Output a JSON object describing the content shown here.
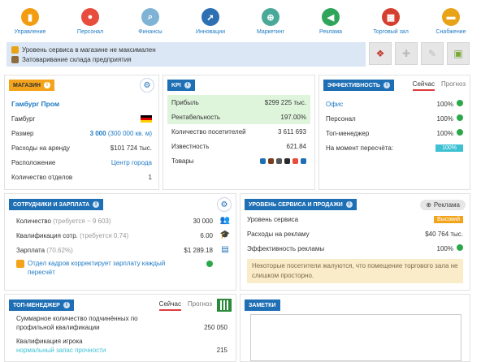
{
  "nav": [
    {
      "label": "Управление",
      "icon": "management-icon",
      "color": "#f39c12",
      "glyph": "▮"
    },
    {
      "label": "Персонал",
      "icon": "staff-icon",
      "color": "#e74c3c",
      "glyph": "●"
    },
    {
      "label": "Финансы",
      "icon": "finance-icon",
      "color": "#7fb3d5",
      "glyph": "⌕"
    },
    {
      "label": "Инновации",
      "icon": "innovation-icon",
      "color": "#2c6fb3",
      "glyph": "➚"
    },
    {
      "label": "Маркетинг",
      "icon": "marketing-icon",
      "color": "#48a999",
      "glyph": "⊕"
    },
    {
      "label": "Реклама",
      "icon": "advertising-icon",
      "color": "#2ea55a",
      "glyph": "◀"
    },
    {
      "label": "Торговый зал",
      "icon": "sales-floor-icon",
      "color": "#d43f2f",
      "glyph": "▦"
    },
    {
      "label": "Снабжение",
      "icon": "supply-icon",
      "color": "#e8a317",
      "glyph": "▬"
    }
  ],
  "notices": [
    {
      "text": "Уровень сервиса в магазине не максимален",
      "color": "#e8a317"
    },
    {
      "text": "Затоваривание склада предприятия",
      "color": "#8e6b3a"
    }
  ],
  "actions": [
    "action-1-icon",
    "action-2-icon",
    "action-3-icon",
    "action-4-icon"
  ],
  "shop": {
    "title": "МАГАЗИН",
    "name": "Гамбург Пром",
    "city": "Гамбург",
    "rows": {
      "size_label": "Размер",
      "size_value": "3 000",
      "size_extra": "(300 000 кв. м)",
      "rent_label": "Расходы на аренду",
      "rent_value": "$101 724 тыс.",
      "location_label": "Расположение",
      "location_value": "Центр города",
      "depts_label": "Количество отделов",
      "depts_value": "1"
    }
  },
  "kpi": {
    "title": "KPI",
    "rows": [
      {
        "label": "Прибыль",
        "value": "$299 225 тыс.",
        "highlight": true
      },
      {
        "label": "Рентабельность",
        "value": "197.00%",
        "highlight": true
      },
      {
        "label": "Количество посетителей",
        "value": "3 611 693",
        "highlight": false
      },
      {
        "label": "Известность",
        "value": "621.84",
        "highlight": false
      }
    ],
    "goods_label": "Товары",
    "goods": [
      "#1f6fb5",
      "#7a3e1f",
      "#555555",
      "#2a2a2a",
      "#e74c3c",
      "#1f6fb5"
    ]
  },
  "efficiency": {
    "title": "ЭФФЕКТИВНОСТЬ",
    "tab_now": "Сейчас",
    "tab_forecast": "Прогноз",
    "rows": [
      {
        "label": "Офис",
        "value": "100%",
        "link": true
      },
      {
        "label": "Персонал",
        "value": "100%",
        "link": false
      },
      {
        "label": "Топ-менеджер",
        "value": "100%",
        "link": false
      }
    ],
    "recalc_label": "На момент пересчёта:",
    "recalc_value": "100%"
  },
  "staff": {
    "title": "СОТРУДНИКИ И ЗАРПЛАТА",
    "count_label": "Количество",
    "count_req": "(требуется ~ 9 603)",
    "count_value": "30 000",
    "qual_label": "Квалификация сотр.",
    "qual_req": "(требуется 0.74)",
    "qual_value": "6.00",
    "salary_label": "Зарплата",
    "salary_pct": "(70.62%)",
    "salary_value": "$1 289.18",
    "hr_note": "Отдел кадров корректирует зарплату каждый пересчёт"
  },
  "service": {
    "title": "УРОВЕНЬ СЕРВИСА И ПРОДАЖИ",
    "ad_button": "Реклама",
    "level_label": "Уровень сервиса",
    "level_value": "Высокий",
    "ad_cost_label": "Расходы на рекламу",
    "ad_cost_value": "$40 764 тыс.",
    "ad_eff_label": "Эффективность рекламы",
    "ad_eff_value": "100%",
    "warning": "Некоторые посетители жалуются, что помещение торгового зала не слишком просторно."
  },
  "manager": {
    "title": "ТОП-МЕНЕДЖЕР",
    "tab_now": "Сейчас",
    "tab_forecast": "Прогноз",
    "row1_label": "Суммарное количество подчинённых по профильной квалификации",
    "row1_value": "250 050",
    "row2_label": "Квалификация игрока",
    "row2_sub": "нормальный запас прочности",
    "row2_value": "215"
  },
  "notes": {
    "title": "ЗАМЕТКИ",
    "value": ""
  }
}
